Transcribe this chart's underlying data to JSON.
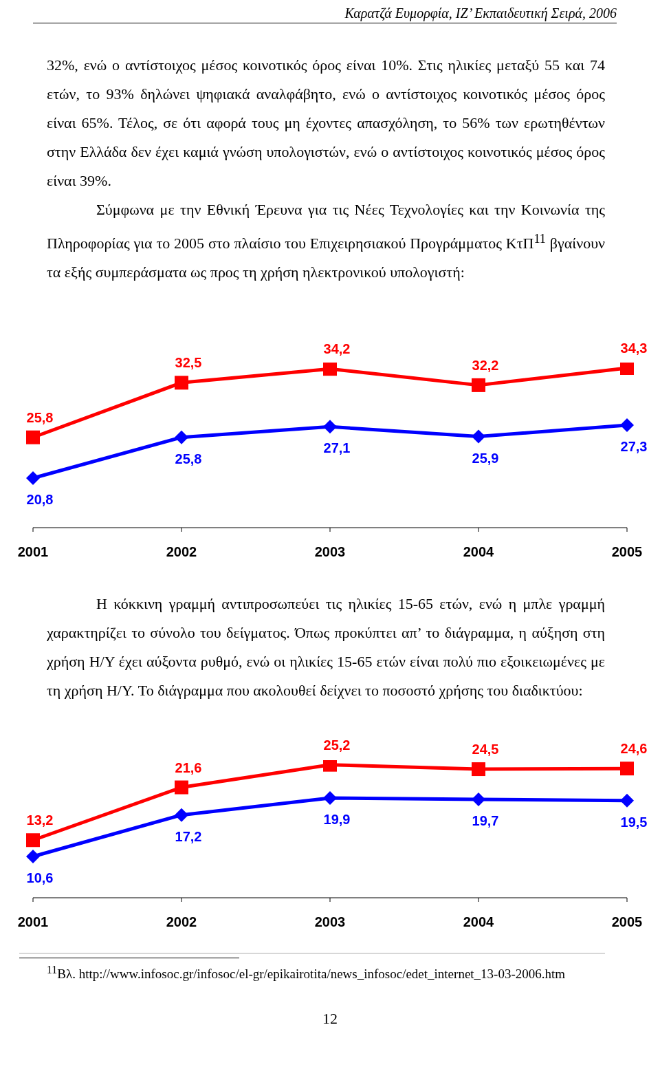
{
  "chart_data": [
    {
      "type": "line",
      "categories": [
        "2001",
        "2002",
        "2003",
        "2004",
        "2005"
      ],
      "annotations": [
        "Καρατζά Ευμορφία, ΙΖ’ Εκπαιδευτική Σειρά, 2006",
        "32%, ενώ ο αντίστοιχος μέσος κοινοτικός όρος είναι 10%. Στις ηλικίες μεταξύ 55 και 74 ετών, το 93% δηλώνει ψηφιακά αναλφάβητο, ενώ ο αντίστοιχος κοινοτικός μέσος όρος είναι 65%. Τέλος, σε ότι αφορά τους μη έχοντες απασχόληση, το 56% των ερωτηθέντων στην Ελλάδα δεν έχει καμιά γνώση υπολογιστών, ενώ ο αντίστοιχος κοινοτικός μέσος όρος είναι 39%.",
        "Σύμφωνα με την Εθνική Έρευνα για τις Νέες Τεχνολογίες και την Κοινωνία της Πληροφορίας για το 2005 στο πλαίσιο του Επιχειρησιακού Προγράμματος ΚτΠ$^{11}$ βγαίνουν τα εξής συμπεράσματα ως προς τη χρήση ηλεκτρονικού υπολογιστή:"
      ],
      "series": [
        {
          "color": "#ff0000",
          "marker": "square",
          "values": [
            25.8,
            32.5,
            34.2,
            32.2,
            34.3
          ],
          "value_labels": [
            "25,8",
            "32,5",
            "34,2",
            "32,2",
            "34,3"
          ]
        },
        {
          "color": "#0000ff",
          "marker": "diamond",
          "values": [
            20.8,
            25.8,
            27.1,
            25.9,
            27.3
          ],
          "value_labels": [
            "20,8",
            "25,8",
            "27,1",
            "25,9",
            "27,3"
          ]
        }
      ]
    },
    {
      "type": "line",
      "categories": [
        "2001",
        "2002",
        "2003",
        "2004",
        "2005"
      ],
      "annotations": [
        "Η κόκκινη γραμμή αντιπροσωπεύει τις ηλικίες 15-65 ετών, ενώ η μπλε γραμμή χαρακτηρίζει το σύνολο του δείγματος. Όπως προκύπτει απ’ το διάγραμμα, η αύξηση στη χρήση Η/Υ έχει αύξοντα ρυθμό, ενώ οι ηλικίες 15-65 ετών είναι πολύ πιο εξοικειωμένες με τη χρήση Η/Υ. Το διάγραμμα που ακολουθεί δείχνει το ποσοστό χρήσης του διαδικτύου:",
        "$^{11}$Βλ. http://www.infosoc.gr/infosoc/el-gr/epikairotita/news_infosoc/edet_internet_13-03-2006.htm",
        "12"
      ],
      "series": [
        {
          "color": "#ff0000",
          "marker": "square",
          "values": [
            13.2,
            21.6,
            25.2,
            24.5,
            24.6
          ],
          "value_labels": [
            "13,2",
            "21,6",
            "25,2",
            "24,5",
            "24,6"
          ]
        },
        {
          "color": "#0000ff",
          "marker": "diamond",
          "values": [
            10.6,
            17.2,
            19.9,
            19.7,
            19.5
          ],
          "value_labels": [
            "10,6",
            "17,2",
            "19,9",
            "19,7",
            "19,5"
          ]
        }
      ]
    }
  ]
}
